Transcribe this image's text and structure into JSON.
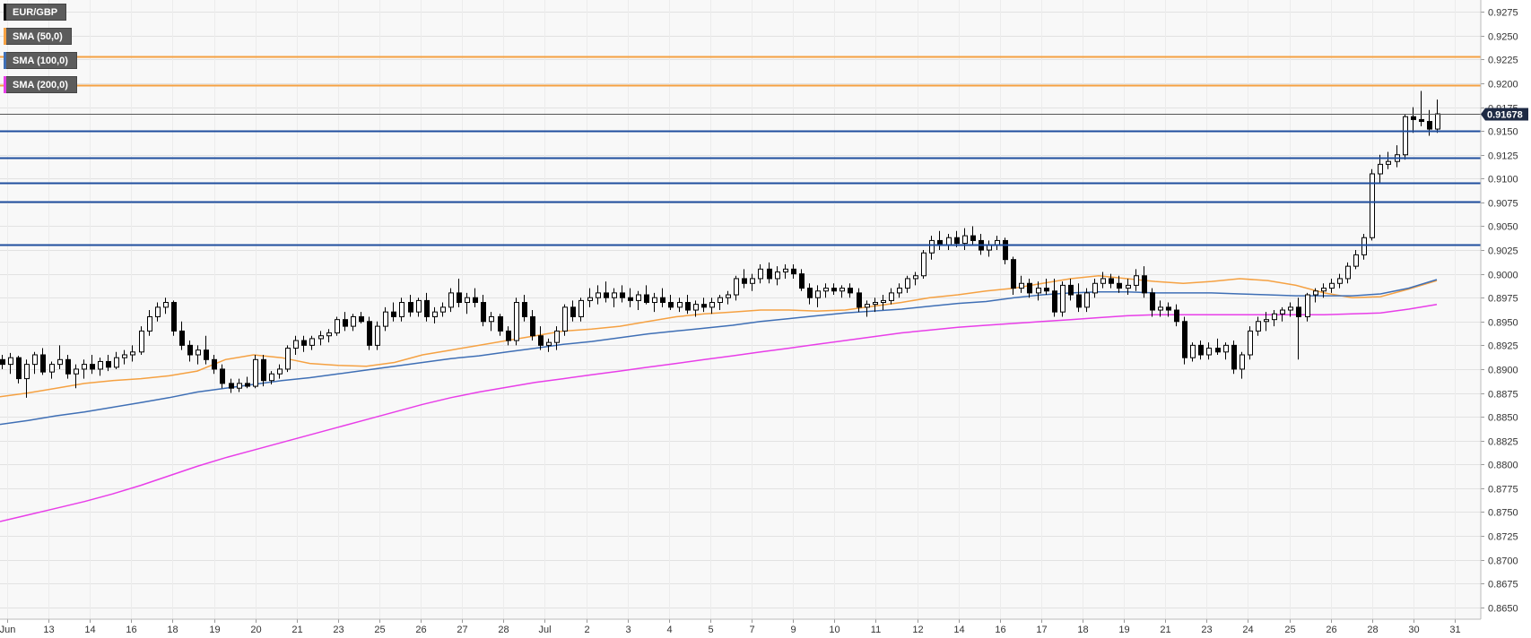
{
  "chart_data": {
    "type": "candlestick",
    "instrument": "EUR/GBP",
    "legend": [
      {
        "label": "EUR/GBP",
        "color": "#111111"
      },
      {
        "label": "SMA (50,0)",
        "color": "#f5a142"
      },
      {
        "label": "SMA (100,0)",
        "color": "#3f6fb5"
      },
      {
        "label": "SMA (200,0)",
        "color": "#e83ee8"
      }
    ],
    "current_price": "0.91678",
    "ylim": [
      0.86375,
      0.92875
    ],
    "y_ticks": [
      "0.9275",
      "0.9250",
      "0.9225",
      "0.9200",
      "0.9175",
      "0.9150",
      "0.9125",
      "0.9100",
      "0.9075",
      "0.9050",
      "0.9025",
      "0.9000",
      "0.8975",
      "0.8950",
      "0.8925",
      "0.8900",
      "0.8875",
      "0.8850",
      "0.8825",
      "0.8800",
      "0.8775",
      "0.8750",
      "0.8725",
      "0.8700",
      "0.8675",
      "0.8650"
    ],
    "x_ticks": [
      "Jun",
      "13",
      "14",
      "16",
      "18",
      "19",
      "20",
      "21",
      "23",
      "25",
      "26",
      "27",
      "28",
      "Jul",
      "2",
      "3",
      "4",
      "5",
      "7",
      "9",
      "10",
      "11",
      "12",
      "14",
      "16",
      "17",
      "18",
      "19",
      "21",
      "23",
      "24",
      "25",
      "26",
      "28",
      "30",
      "31"
    ],
    "resistance_levels": [
      0.9228,
      0.9198
    ],
    "support_levels": [
      0.915,
      0.9122,
      0.9096,
      0.9076,
      0.9031
    ],
    "grid": true,
    "colors": {
      "bull": "#ffffff",
      "bear": "#000000",
      "wick": "#000000",
      "grid": "#e2e2e2",
      "plot_bg": "#f8f8f8",
      "resistance": "#f5a142",
      "support": "#1f4e9e",
      "price_line": "#555555",
      "badge": "#1e2a44"
    },
    "series": [
      {
        "name": "SMA (50,0)",
        "values": [
          0.8871,
          0.8875,
          0.888,
          0.8885,
          0.8888,
          0.889,
          0.8893,
          0.8898,
          0.891,
          0.8915,
          0.8912,
          0.8906,
          0.8904,
          0.8903,
          0.8907,
          0.8915,
          0.892,
          0.8925,
          0.893,
          0.8935,
          0.894,
          0.8942,
          0.8945,
          0.895,
          0.8955,
          0.8958,
          0.896,
          0.8962,
          0.8962,
          0.8961,
          0.8962,
          0.8966,
          0.897,
          0.8975,
          0.8978,
          0.8982,
          0.8985,
          0.899,
          0.8995,
          0.8998,
          0.8995,
          0.8992,
          0.899,
          0.8992,
          0.8995,
          0.8993,
          0.8988,
          0.898,
          0.8975,
          0.8976,
          0.8984,
          0.8993
        ]
      },
      {
        "name": "SMA (100,0)",
        "values": [
          0.8842,
          0.8846,
          0.8851,
          0.8855,
          0.886,
          0.8865,
          0.887,
          0.8876,
          0.888,
          0.8884,
          0.8888,
          0.8891,
          0.8895,
          0.8899,
          0.8903,
          0.8907,
          0.8911,
          0.8914,
          0.8918,
          0.8922,
          0.8926,
          0.8929,
          0.8933,
          0.8937,
          0.894,
          0.8943,
          0.8946,
          0.895,
          0.8953,
          0.8956,
          0.8959,
          0.8961,
          0.8963,
          0.8966,
          0.8969,
          0.8971,
          0.8975,
          0.8978,
          0.898,
          0.8981,
          0.8981,
          0.898,
          0.898,
          0.898,
          0.8979,
          0.8978,
          0.8977,
          0.8977,
          0.8977,
          0.8979,
          0.8985,
          0.8994
        ]
      },
      {
        "name": "SMA (200,0)",
        "values": [
          0.874,
          0.8747,
          0.8754,
          0.8761,
          0.8769,
          0.8778,
          0.8788,
          0.8798,
          0.8807,
          0.8815,
          0.8823,
          0.8831,
          0.8839,
          0.8847,
          0.8855,
          0.8863,
          0.887,
          0.8876,
          0.8881,
          0.8886,
          0.889,
          0.8894,
          0.8898,
          0.8902,
          0.8906,
          0.891,
          0.8914,
          0.8918,
          0.8922,
          0.8926,
          0.893,
          0.8934,
          0.8938,
          0.8941,
          0.8944,
          0.8946,
          0.8948,
          0.895,
          0.8952,
          0.8954,
          0.8956,
          0.8957,
          0.8957,
          0.8957,
          0.8957,
          0.8957,
          0.8957,
          0.8957,
          0.8958,
          0.8959,
          0.8963,
          0.8968
        ]
      }
    ],
    "candles": [
      [
        0.891,
        0.8915,
        0.89,
        0.8905
      ],
      [
        0.8905,
        0.8917,
        0.8895,
        0.8912
      ],
      [
        0.8912,
        0.8914,
        0.8885,
        0.889
      ],
      [
        0.889,
        0.891,
        0.887,
        0.8905
      ],
      [
        0.8905,
        0.8918,
        0.8895,
        0.8915
      ],
      [
        0.8915,
        0.8922,
        0.8894,
        0.8897
      ],
      [
        0.8897,
        0.8908,
        0.889,
        0.8905
      ],
      [
        0.8905,
        0.8925,
        0.89,
        0.891
      ],
      [
        0.891,
        0.8915,
        0.889,
        0.8895
      ],
      [
        0.8895,
        0.8905,
        0.888,
        0.89
      ],
      [
        0.89,
        0.891,
        0.889,
        0.8905
      ],
      [
        0.8905,
        0.8915,
        0.8895,
        0.89
      ],
      [
        0.89,
        0.8912,
        0.8893,
        0.8908
      ],
      [
        0.8908,
        0.8915,
        0.8898,
        0.8902
      ],
      [
        0.8902,
        0.8918,
        0.89,
        0.8912
      ],
      [
        0.8912,
        0.892,
        0.8905,
        0.8915
      ],
      [
        0.8915,
        0.8925,
        0.8908,
        0.8918
      ],
      [
        0.8918,
        0.8945,
        0.8915,
        0.894
      ],
      [
        0.894,
        0.8962,
        0.8935,
        0.8955
      ],
      [
        0.8955,
        0.897,
        0.895,
        0.8965
      ],
      [
        0.8965,
        0.8975,
        0.8958,
        0.897
      ],
      [
        0.897,
        0.8972,
        0.8935,
        0.894
      ],
      [
        0.894,
        0.895,
        0.892,
        0.8925
      ],
      [
        0.8925,
        0.893,
        0.8908,
        0.8915
      ],
      [
        0.8915,
        0.8925,
        0.8905,
        0.892
      ],
      [
        0.892,
        0.8935,
        0.8905,
        0.891
      ],
      [
        0.891,
        0.8915,
        0.8895,
        0.89
      ],
      [
        0.89,
        0.8905,
        0.888,
        0.8885
      ],
      [
        0.8885,
        0.889,
        0.8875,
        0.888
      ],
      [
        0.888,
        0.889,
        0.8876,
        0.8885
      ],
      [
        0.8885,
        0.8892,
        0.888,
        0.8882
      ],
      [
        0.8882,
        0.8915,
        0.888,
        0.891
      ],
      [
        0.891,
        0.8915,
        0.8882,
        0.8888
      ],
      [
        0.8888,
        0.8898,
        0.8884,
        0.8895
      ],
      [
        0.8895,
        0.8905,
        0.889,
        0.89
      ],
      [
        0.89,
        0.8925,
        0.8897,
        0.8922
      ],
      [
        0.8922,
        0.8935,
        0.8915,
        0.893
      ],
      [
        0.893,
        0.8935,
        0.8918,
        0.8925
      ],
      [
        0.8925,
        0.8935,
        0.892,
        0.8932
      ],
      [
        0.8932,
        0.894,
        0.8925,
        0.8935
      ],
      [
        0.8935,
        0.8942,
        0.8928,
        0.8938
      ],
      [
        0.8938,
        0.8955,
        0.8935,
        0.8952
      ],
      [
        0.8952,
        0.896,
        0.894,
        0.8945
      ],
      [
        0.8945,
        0.8958,
        0.894,
        0.8955
      ],
      [
        0.8955,
        0.896,
        0.8948,
        0.895
      ],
      [
        0.895,
        0.8955,
        0.892,
        0.8925
      ],
      [
        0.8925,
        0.895,
        0.892,
        0.8945
      ],
      [
        0.8945,
        0.8965,
        0.894,
        0.896
      ],
      [
        0.896,
        0.897,
        0.895,
        0.8955
      ],
      [
        0.8955,
        0.8975,
        0.895,
        0.897
      ],
      [
        0.897,
        0.8978,
        0.8955,
        0.896
      ],
      [
        0.896,
        0.8975,
        0.8955,
        0.8972
      ],
      [
        0.8972,
        0.898,
        0.895,
        0.8955
      ],
      [
        0.8955,
        0.8965,
        0.8948,
        0.896
      ],
      [
        0.896,
        0.897,
        0.8955,
        0.8965
      ],
      [
        0.8965,
        0.8985,
        0.896,
        0.898
      ],
      [
        0.898,
        0.8995,
        0.8965,
        0.897
      ],
      [
        0.897,
        0.898,
        0.8958,
        0.8975
      ],
      [
        0.8975,
        0.8985,
        0.8965,
        0.897
      ],
      [
        0.897,
        0.8978,
        0.8945,
        0.895
      ],
      [
        0.895,
        0.896,
        0.894,
        0.8955
      ],
      [
        0.8955,
        0.8958,
        0.8935,
        0.894
      ],
      [
        0.894,
        0.8945,
        0.8925,
        0.893
      ],
      [
        0.893,
        0.8975,
        0.8925,
        0.897
      ],
      [
        0.897,
        0.8978,
        0.895,
        0.8955
      ],
      [
        0.8955,
        0.8962,
        0.893,
        0.8935
      ],
      [
        0.8935,
        0.8945,
        0.892,
        0.8925
      ],
      [
        0.8925,
        0.8932,
        0.8918,
        0.8928
      ],
      [
        0.8928,
        0.8945,
        0.892,
        0.894
      ],
      [
        0.894,
        0.8968,
        0.8935,
        0.8965
      ],
      [
        0.8965,
        0.8972,
        0.895,
        0.8955
      ],
      [
        0.8955,
        0.8975,
        0.895,
        0.8972
      ],
      [
        0.8972,
        0.8985,
        0.8965,
        0.8975
      ],
      [
        0.8975,
        0.8988,
        0.8968,
        0.898
      ],
      [
        0.898,
        0.8992,
        0.897,
        0.8975
      ],
      [
        0.8975,
        0.8985,
        0.8965,
        0.898
      ],
      [
        0.898,
        0.8988,
        0.897,
        0.8975
      ],
      [
        0.8975,
        0.8985,
        0.8965,
        0.8972
      ],
      [
        0.8972,
        0.8982,
        0.8962,
        0.8978
      ],
      [
        0.8978,
        0.8988,
        0.8968,
        0.897
      ],
      [
        0.897,
        0.898,
        0.896,
        0.8975
      ],
      [
        0.8975,
        0.8985,
        0.8965,
        0.897
      ],
      [
        0.897,
        0.8978,
        0.8962,
        0.8965
      ],
      [
        0.8965,
        0.8975,
        0.896,
        0.897
      ],
      [
        0.897,
        0.8978,
        0.8958,
        0.8962
      ],
      [
        0.8962,
        0.8972,
        0.8955,
        0.8968
      ],
      [
        0.8968,
        0.8975,
        0.896,
        0.8965
      ],
      [
        0.8965,
        0.8975,
        0.8958,
        0.897
      ],
      [
        0.897,
        0.8978,
        0.8962,
        0.8975
      ],
      [
        0.8975,
        0.8982,
        0.8968,
        0.8978
      ],
      [
        0.8978,
        0.8998,
        0.8972,
        0.8995
      ],
      [
        0.8995,
        0.9005,
        0.8985,
        0.899
      ],
      [
        0.899,
        0.9,
        0.8982,
        0.8995
      ],
      [
        0.8995,
        0.901,
        0.899,
        0.9005
      ],
      [
        0.9005,
        0.9012,
        0.899,
        0.8995
      ],
      [
        0.8995,
        0.9008,
        0.8988,
        0.9002
      ],
      [
        0.9002,
        0.901,
        0.8995,
        0.9005
      ],
      [
        0.9005,
        0.901,
        0.8995,
        0.9
      ],
      [
        0.9,
        0.9005,
        0.8982,
        0.8985
      ],
      [
        0.8985,
        0.899,
        0.8968,
        0.8975
      ],
      [
        0.8975,
        0.8988,
        0.8965,
        0.8982
      ],
      [
        0.8982,
        0.899,
        0.8975,
        0.8985
      ],
      [
        0.8985,
        0.899,
        0.8978,
        0.8982
      ],
      [
        0.8982,
        0.8988,
        0.8975,
        0.8985
      ],
      [
        0.8985,
        0.899,
        0.8975,
        0.898
      ],
      [
        0.898,
        0.8985,
        0.896,
        0.8965
      ],
      [
        0.8965,
        0.8972,
        0.8955,
        0.8968
      ],
      [
        0.8968,
        0.8975,
        0.896,
        0.897
      ],
      [
        0.897,
        0.8978,
        0.8962,
        0.8972
      ],
      [
        0.8972,
        0.8985,
        0.8968,
        0.898
      ],
      [
        0.898,
        0.899,
        0.8975,
        0.8985
      ],
      [
        0.8985,
        0.8998,
        0.898,
        0.8995
      ],
      [
        0.8995,
        0.9002,
        0.8988,
        0.8998
      ],
      [
        0.8998,
        0.9025,
        0.8995,
        0.9022
      ],
      [
        0.9022,
        0.904,
        0.9015,
        0.9035
      ],
      [
        0.9035,
        0.9045,
        0.9025,
        0.903
      ],
      [
        0.903,
        0.9042,
        0.9025,
        0.9038
      ],
      [
        0.9038,
        0.9045,
        0.9028,
        0.9032
      ],
      [
        0.9032,
        0.9048,
        0.9025,
        0.904
      ],
      [
        0.904,
        0.905,
        0.903,
        0.9035
      ],
      [
        0.9035,
        0.9042,
        0.902,
        0.9025
      ],
      [
        0.9025,
        0.9035,
        0.9018,
        0.903
      ],
      [
        0.903,
        0.904,
        0.9025,
        0.9035
      ],
      [
        0.9035,
        0.9038,
        0.901,
        0.9015
      ],
      [
        0.9015,
        0.9018,
        0.8978,
        0.8985
      ],
      [
        0.8985,
        0.8998,
        0.898,
        0.899
      ],
      [
        0.899,
        0.8995,
        0.8975,
        0.898
      ],
      [
        0.898,
        0.8992,
        0.8972,
        0.8985
      ],
      [
        0.8985,
        0.8995,
        0.8978,
        0.8982
      ],
      [
        0.8982,
        0.8995,
        0.8955,
        0.896
      ],
      [
        0.896,
        0.8992,
        0.8955,
        0.8988
      ],
      [
        0.8988,
        0.8995,
        0.8972,
        0.8978
      ],
      [
        0.8978,
        0.899,
        0.896,
        0.8965
      ],
      [
        0.8965,
        0.8985,
        0.896,
        0.898
      ],
      [
        0.898,
        0.8995,
        0.8975,
        0.899
      ],
      [
        0.899,
        0.9002,
        0.8985,
        0.8995
      ],
      [
        0.8995,
        0.9,
        0.8985,
        0.899
      ],
      [
        0.899,
        0.8998,
        0.898,
        0.8985
      ],
      [
        0.8985,
        0.8995,
        0.8978,
        0.8988
      ],
      [
        0.8988,
        0.9005,
        0.8982,
        0.8998
      ],
      [
        0.8998,
        0.9008,
        0.8975,
        0.898
      ],
      [
        0.898,
        0.8985,
        0.8955,
        0.8962
      ],
      [
        0.8962,
        0.8972,
        0.8955,
        0.8965
      ],
      [
        0.8965,
        0.897,
        0.8955,
        0.8962
      ],
      [
        0.8962,
        0.8968,
        0.8945,
        0.895
      ],
      [
        0.895,
        0.8955,
        0.8905,
        0.8912
      ],
      [
        0.8912,
        0.8928,
        0.8908,
        0.8925
      ],
      [
        0.8925,
        0.893,
        0.891,
        0.8915
      ],
      [
        0.8915,
        0.8928,
        0.891,
        0.8922
      ],
      [
        0.8922,
        0.8932,
        0.8915,
        0.8918
      ],
      [
        0.8918,
        0.8928,
        0.891,
        0.8925
      ],
      [
        0.8925,
        0.893,
        0.8895,
        0.89
      ],
      [
        0.89,
        0.8918,
        0.889,
        0.8915
      ],
      [
        0.8915,
        0.8945,
        0.891,
        0.894
      ],
      [
        0.894,
        0.8955,
        0.8935,
        0.895
      ],
      [
        0.895,
        0.896,
        0.894,
        0.8952
      ],
      [
        0.8952,
        0.8962,
        0.8945,
        0.8958
      ],
      [
        0.8958,
        0.8965,
        0.895,
        0.8962
      ],
      [
        0.8962,
        0.897,
        0.8955,
        0.8965
      ],
      [
        0.8965,
        0.8975,
        0.891,
        0.8955
      ],
      [
        0.8955,
        0.898,
        0.895,
        0.8978
      ],
      [
        0.8978,
        0.8985,
        0.897,
        0.8982
      ],
      [
        0.8982,
        0.899,
        0.8975,
        0.8985
      ],
      [
        0.8985,
        0.8995,
        0.898,
        0.899
      ],
      [
        0.899,
        0.9,
        0.8985,
        0.8995
      ],
      [
        0.8995,
        0.9012,
        0.899,
        0.9008
      ],
      [
        0.9008,
        0.9025,
        0.9005,
        0.902
      ],
      [
        0.902,
        0.9042,
        0.9015,
        0.9038
      ],
      [
        0.9038,
        0.911,
        0.9035,
        0.9105
      ],
      [
        0.9105,
        0.9125,
        0.9095,
        0.9115
      ],
      [
        0.9115,
        0.9128,
        0.911,
        0.9118
      ],
      [
        0.9118,
        0.9135,
        0.9112,
        0.9125
      ],
      [
        0.9125,
        0.9168,
        0.912,
        0.9165
      ],
      [
        0.9165,
        0.9175,
        0.9148,
        0.9162
      ],
      [
        0.9162,
        0.9192,
        0.9155,
        0.916
      ],
      [
        0.916,
        0.9172,
        0.9145,
        0.9152
      ],
      [
        0.9152,
        0.9183,
        0.9148,
        0.9168
      ]
    ]
  }
}
